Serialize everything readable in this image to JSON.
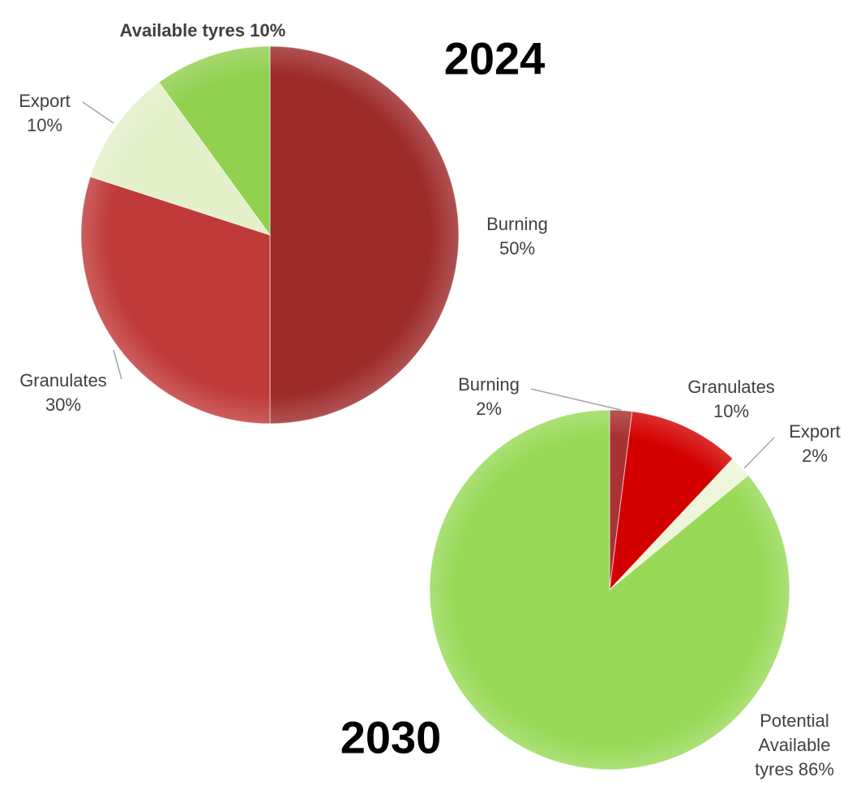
{
  "chart_data": [
    {
      "type": "pie",
      "title": "2024",
      "categories": [
        "Burning",
        "Granulates",
        "Export",
        "Available tyres"
      ],
      "values": [
        50,
        30,
        10,
        10
      ],
      "value_labels": [
        "50%",
        "30%",
        "10%",
        "10%"
      ],
      "colors": [
        "#9e2b2b",
        "#c03a3a",
        "#e3f0c9",
        "#92d050"
      ]
    },
    {
      "type": "pie",
      "title": "2030",
      "categories": [
        "Burning",
        "Granulates",
        "Export",
        "Potential Available tyres"
      ],
      "values": [
        2,
        10,
        2,
        86
      ],
      "value_labels": [
        "2%",
        "10%",
        "2%",
        "86%"
      ],
      "colors": [
        "#a83232",
        "#d40000",
        "#eef5d8",
        "#98d957"
      ]
    }
  ]
}
